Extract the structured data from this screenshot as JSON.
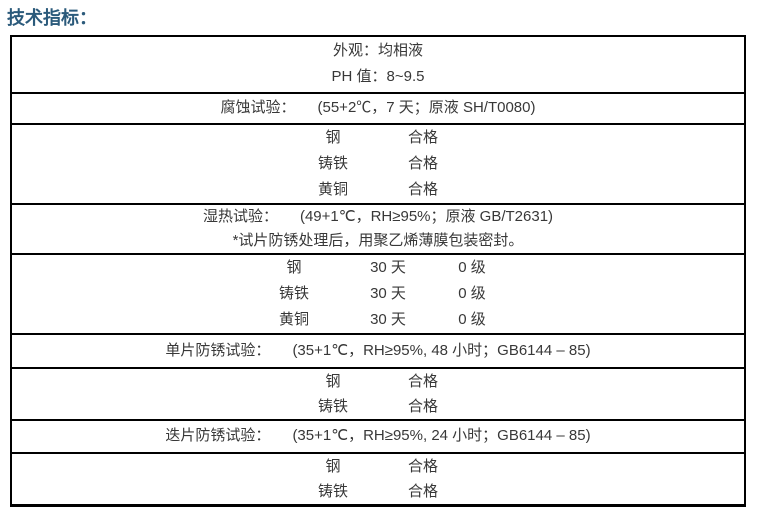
{
  "page": {
    "title": "技术指标："
  },
  "colors": {
    "title_color": "#2B5A7B",
    "border_color": "#000000",
    "text_color": "#383838",
    "background": "#FFFFFF"
  },
  "table": {
    "sections": [
      {
        "rows": [
          "外观：均相液",
          "PH 值：8~9.5"
        ]
      },
      {
        "label": "腐蚀试验：",
        "detail": "(55+2℃，7 天；原液 SH/T0080)"
      },
      {
        "rows": [
          [
            "钢",
            "合格"
          ],
          [
            "铸铁",
            "合格"
          ],
          [
            "黄铜",
            "合格"
          ]
        ]
      },
      {
        "label": "湿热试验：",
        "detail": "(49+1℃，RH≥95%；原液 GB/T2631)",
        "note": "*试片防锈处理后，用聚乙烯薄膜包装密封。"
      },
      {
        "rows": [
          [
            "钢",
            "30 天",
            "0 级"
          ],
          [
            "铸铁",
            "30 天",
            "0 级"
          ],
          [
            "黄铜",
            "30 天",
            "0 级"
          ]
        ]
      },
      {
        "label": "单片防锈试验：",
        "detail": "(35+1℃，RH≥95%, 48 小时；GB6144 – 85)"
      },
      {
        "rows": [
          [
            "钢",
            "合格"
          ],
          [
            "铸铁",
            "合格"
          ]
        ]
      },
      {
        "label": "迭片防锈试验：",
        "detail": "(35+1℃，RH≥95%, 24 小时；GB6144 – 85)"
      },
      {
        "rows": [
          [
            "钢",
            "合格"
          ],
          [
            "铸铁",
            "合格"
          ]
        ]
      }
    ]
  }
}
